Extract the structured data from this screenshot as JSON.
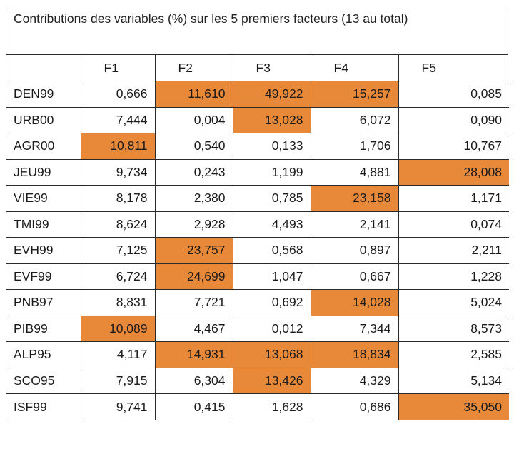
{
  "caption": "Contributions des variables (%) sur les 5 premiers facteurs (13 au total)",
  "highlight_color": "#e8893a",
  "columns": [
    "",
    "F1",
    "F2",
    "F3",
    "F4",
    "F5"
  ],
  "rows": [
    {
      "name": "DEN99",
      "values": [
        "0,666",
        "11,610",
        "49,922",
        "15,257",
        "0,085"
      ],
      "highlight": [
        false,
        true,
        true,
        true,
        false
      ]
    },
    {
      "name": "URB00",
      "values": [
        "7,444",
        "0,004",
        "13,028",
        "6,072",
        "0,090"
      ],
      "highlight": [
        false,
        false,
        true,
        false,
        false
      ]
    },
    {
      "name": "AGR00",
      "values": [
        "10,811",
        "0,540",
        "0,133",
        "1,706",
        "10,767"
      ],
      "highlight": [
        true,
        false,
        false,
        false,
        false
      ]
    },
    {
      "name": "JEU99",
      "values": [
        "9,734",
        "0,243",
        "1,199",
        "4,881",
        "28,008"
      ],
      "highlight": [
        false,
        false,
        false,
        false,
        true
      ]
    },
    {
      "name": "VIE99",
      "values": [
        "8,178",
        "2,380",
        "0,785",
        "23,158",
        "1,171"
      ],
      "highlight": [
        false,
        false,
        false,
        true,
        false
      ]
    },
    {
      "name": "TMI99",
      "values": [
        "8,624",
        "2,928",
        "4,493",
        "2,141",
        "0,074"
      ],
      "highlight": [
        false,
        false,
        false,
        false,
        false
      ]
    },
    {
      "name": "EVH99",
      "values": [
        "7,125",
        "23,757",
        "0,568",
        "0,897",
        "2,211"
      ],
      "highlight": [
        false,
        true,
        false,
        false,
        false
      ]
    },
    {
      "name": "EVF99",
      "values": [
        "6,724",
        "24,699",
        "1,047",
        "0,667",
        "1,228"
      ],
      "highlight": [
        false,
        true,
        false,
        false,
        false
      ]
    },
    {
      "name": "PNB97",
      "values": [
        "8,831",
        "7,721",
        "0,692",
        "14,028",
        "5,024"
      ],
      "highlight": [
        false,
        false,
        false,
        true,
        false
      ]
    },
    {
      "name": "PIB99",
      "values": [
        "10,089",
        "4,467",
        "0,012",
        "7,344",
        "8,573"
      ],
      "highlight": [
        true,
        false,
        false,
        false,
        false
      ]
    },
    {
      "name": "ALP95",
      "values": [
        "4,117",
        "14,931",
        "13,068",
        "18,834",
        "2,585"
      ],
      "highlight": [
        false,
        true,
        true,
        true,
        false
      ]
    },
    {
      "name": "SCO95",
      "values": [
        "7,915",
        "6,304",
        "13,426",
        "4,329",
        "5,134"
      ],
      "highlight": [
        false,
        false,
        true,
        false,
        false
      ]
    },
    {
      "name": "ISF99",
      "values": [
        "9,741",
        "0,415",
        "1,628",
        "0,686",
        "35,050"
      ],
      "highlight": [
        false,
        false,
        false,
        false,
        true
      ]
    }
  ]
}
